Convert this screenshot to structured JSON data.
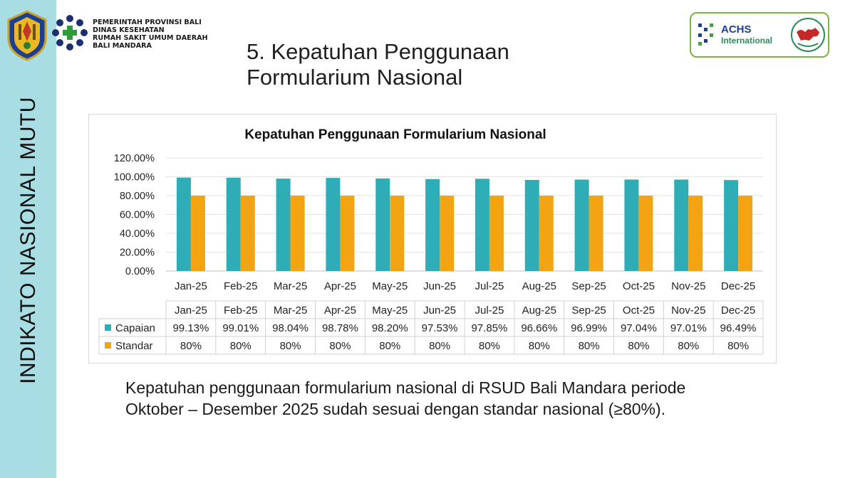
{
  "sidebar": {
    "label": "INDIKATO NASIONAL MUTU"
  },
  "header": {
    "org_lines": [
      "PEMERINTAH PROVINSI BALI",
      "DINAS KESEHATAN",
      "RUMAH SAKIT UMUM DAERAH",
      "BALI MANDARA"
    ],
    "title_line1": "5. Kepatuhan Penggunaan",
    "title_line2": "Formularium Nasional",
    "accreditation": {
      "name": "ACHS",
      "sub": "International"
    }
  },
  "colors": {
    "sidebar": "#a8dde3",
    "capaian": "#2eadb7",
    "standar": "#f2a413",
    "accent_green": "#7cb342"
  },
  "chart_data": {
    "type": "bar",
    "title": "Kepatuhan Penggunaan Formularium Nasional",
    "categories": [
      "Jan-25",
      "Feb-25",
      "Mar-25",
      "Apr-25",
      "May-25",
      "Jun-25",
      "Jul-25",
      "Aug-25",
      "Sep-25",
      "Oct-25",
      "Nov-25",
      "Dec-25"
    ],
    "series": [
      {
        "name": "Capaian",
        "color": "#2eadb7",
        "values": [
          99.13,
          99.01,
          98.04,
          98.78,
          98.2,
          97.53,
          97.85,
          96.66,
          96.99,
          97.04,
          97.01,
          96.49
        ],
        "labels": [
          "99.13%",
          "99.01%",
          "98.04%",
          "98.78%",
          "98.20%",
          "97.53%",
          "97.85%",
          "96.66%",
          "96.99%",
          "97.04%",
          "97.01%",
          "96.49%"
        ]
      },
      {
        "name": "Standar",
        "color": "#f2a413",
        "values": [
          80,
          80,
          80,
          80,
          80,
          80,
          80,
          80,
          80,
          80,
          80,
          80
        ],
        "labels": [
          "80%",
          "80%",
          "80%",
          "80%",
          "80%",
          "80%",
          "80%",
          "80%",
          "80%",
          "80%",
          "80%",
          "80%"
        ]
      }
    ],
    "ylim": [
      0,
      120
    ],
    "yticks": [
      "0.00%",
      "20.00%",
      "40.00%",
      "60.00%",
      "80.00%",
      "100.00%",
      "120.00%"
    ],
    "grid": true,
    "legend": "data table"
  },
  "summary": "Kepatuhan penggunaan formularium nasional di RSUD Bali Mandara periode Oktober – Desember 2025 sudah sesuai dengan standar nasional (≥80%)."
}
